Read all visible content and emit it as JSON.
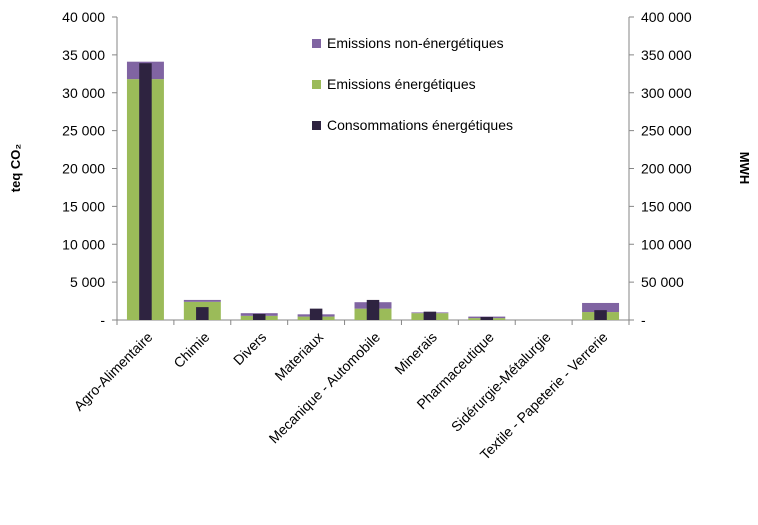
{
  "chart_data": {
    "type": "bar",
    "categories": [
      "Agro-Alimentaire",
      "Chimie",
      "Divers",
      "Materiaux",
      "Mecanique - Automobile",
      "Minerais",
      "Pharmaceutique",
      "Sidérurgie-Métalurgie",
      "Textile - Papeterie - Verrerie"
    ],
    "series": [
      {
        "name": "Emissions énergétiques",
        "axis": "left",
        "stack": "emissions",
        "color": "#9bbb59",
        "values": [
          31800,
          2400,
          550,
          450,
          1500,
          900,
          250,
          0,
          1050
        ]
      },
      {
        "name": "Emissions non-énergétiques",
        "axis": "left",
        "stack": "emissions",
        "color": "#8064a2",
        "values": [
          2300,
          250,
          350,
          300,
          850,
          100,
          200,
          0,
          1200
        ]
      },
      {
        "name": "Consommations énergétiques",
        "axis": "right",
        "stack": "consumption",
        "color": "#2e2340",
        "values": [
          339000,
          17000,
          8000,
          15000,
          26500,
          11000,
          4000,
          0,
          13000
        ]
      }
    ],
    "ylabel": "teq CO₂",
    "y2label": "MWH",
    "ylim": [
      0,
      40000
    ],
    "y2lim": [
      0,
      400000
    ],
    "yticks": [
      "-",
      "5 000",
      "10 000",
      "15 000",
      "20 000",
      "25 000",
      "30 000",
      "35 000",
      "40 000"
    ],
    "y2ticks": [
      "-",
      "50 000",
      "100 000",
      "150 000",
      "200 000",
      "250 000",
      "300 000",
      "350 000",
      "400 000"
    ],
    "legend_order": [
      "Emissions non-énergétiques",
      "Emissions énergétiques",
      "Consommations énergétiques"
    ],
    "legend_position": "inside-top-right",
    "grid": false
  }
}
